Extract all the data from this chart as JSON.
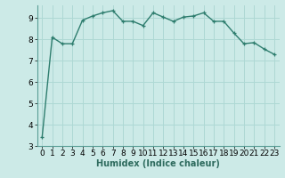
{
  "x": [
    0,
    1,
    2,
    3,
    4,
    5,
    6,
    7,
    8,
    9,
    10,
    11,
    12,
    13,
    14,
    15,
    16,
    17,
    18,
    19,
    20,
    21,
    22,
    23
  ],
  "y": [
    3.4,
    8.1,
    7.8,
    7.8,
    8.9,
    9.1,
    9.25,
    9.35,
    8.85,
    8.85,
    8.65,
    9.25,
    9.05,
    8.85,
    9.05,
    9.1,
    9.25,
    8.85,
    8.85,
    8.3,
    7.8,
    7.85,
    7.55,
    7.3
  ],
  "line_color": "#2e7d6e",
  "marker": "+",
  "marker_color": "#2e7d6e",
  "bg_color": "#cceae7",
  "grid_color": "#aed8d4",
  "xlabel": "Humidex (Indice chaleur)",
  "xlim": [
    -0.5,
    23.5
  ],
  "ylim": [
    3.0,
    9.6
  ],
  "yticks": [
    3,
    4,
    5,
    6,
    7,
    8,
    9
  ],
  "xticks": [
    0,
    1,
    2,
    3,
    4,
    5,
    6,
    7,
    8,
    9,
    10,
    11,
    12,
    13,
    14,
    15,
    16,
    17,
    18,
    19,
    20,
    21,
    22,
    23
  ],
  "xlabel_fontsize": 7.0,
  "tick_fontsize": 6.5,
  "line_width": 1.0,
  "marker_size": 3,
  "spine_color": "#5a9e96"
}
